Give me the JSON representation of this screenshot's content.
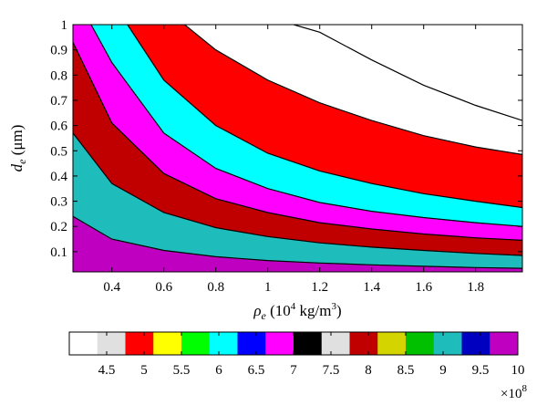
{
  "chart_data": {
    "type": "contour",
    "xlabel": {
      "symbol": "ρ",
      "sub": "e",
      "unit_pre": " (10",
      "unit_sup": "4",
      "unit_mid": " kg/m",
      "unit_sup2": "3",
      "unit_post": ")"
    },
    "ylabel": {
      "symbol": "d",
      "sub": "e",
      "unit": " (μm)"
    },
    "xlim": [
      0.25,
      1.98
    ],
    "ylim": [
      0.02,
      1.0
    ],
    "x_ticks": [
      0.4,
      0.6,
      0.8,
      1.0,
      1.2,
      1.4,
      1.6,
      1.8
    ],
    "x_tick_labels": [
      "0.4",
      "0.6",
      "0.8",
      "1",
      "1.2",
      "1.4",
      "1.6",
      "1.8"
    ],
    "y_ticks": [
      0.1,
      0.2,
      0.3,
      0.4,
      0.5,
      0.6,
      0.7,
      0.8,
      0.9,
      1.0
    ],
    "y_tick_labels": [
      "0.1",
      "0.2",
      "0.3",
      "0.4",
      "0.5",
      "0.6",
      "0.7",
      "0.8",
      "0.9",
      "1"
    ],
    "region_colors": [
      "#c000c0",
      "#1fbcbc",
      "#c00000",
      "#ff00ff",
      "#00ffff",
      "#ff0000",
      "#ffffff"
    ],
    "contour_lines": [
      {
        "points": [
          [
            0.25,
            0.24
          ],
          [
            0.4,
            0.15
          ],
          [
            0.6,
            0.105
          ],
          [
            0.8,
            0.08
          ],
          [
            1.0,
            0.065
          ],
          [
            1.2,
            0.055
          ],
          [
            1.4,
            0.048
          ],
          [
            1.6,
            0.042
          ],
          [
            1.8,
            0.037
          ],
          [
            1.98,
            0.034
          ]
        ]
      },
      {
        "points": [
          [
            0.25,
            0.57
          ],
          [
            0.4,
            0.37
          ],
          [
            0.6,
            0.255
          ],
          [
            0.8,
            0.195
          ],
          [
            1.0,
            0.16
          ],
          [
            1.2,
            0.135
          ],
          [
            1.4,
            0.118
          ],
          [
            1.6,
            0.105
          ],
          [
            1.8,
            0.093
          ],
          [
            1.98,
            0.085
          ]
        ]
      },
      {
        "points": [
          [
            0.25,
            0.93
          ],
          [
            0.4,
            0.61
          ],
          [
            0.6,
            0.41
          ],
          [
            0.8,
            0.31
          ],
          [
            1.0,
            0.255
          ],
          [
            1.2,
            0.215
          ],
          [
            1.4,
            0.19
          ],
          [
            1.6,
            0.17
          ],
          [
            1.8,
            0.155
          ],
          [
            1.98,
            0.145
          ]
        ]
      },
      {
        "points": [
          [
            0.32,
            1.0
          ],
          [
            0.4,
            0.85
          ],
          [
            0.6,
            0.57
          ],
          [
            0.8,
            0.43
          ],
          [
            1.0,
            0.35
          ],
          [
            1.2,
            0.295
          ],
          [
            1.4,
            0.26
          ],
          [
            1.6,
            0.235
          ],
          [
            1.8,
            0.215
          ],
          [
            1.98,
            0.2
          ]
        ]
      },
      {
        "points": [
          [
            0.46,
            1.0
          ],
          [
            0.6,
            0.78
          ],
          [
            0.8,
            0.6
          ],
          [
            1.0,
            0.49
          ],
          [
            1.2,
            0.42
          ],
          [
            1.4,
            0.37
          ],
          [
            1.6,
            0.33
          ],
          [
            1.8,
            0.3
          ],
          [
            1.98,
            0.275
          ]
        ]
      },
      {
        "points": [
          [
            0.68,
            1.0
          ],
          [
            0.8,
            0.9
          ],
          [
            1.0,
            0.78
          ],
          [
            1.2,
            0.69
          ],
          [
            1.4,
            0.62
          ],
          [
            1.6,
            0.56
          ],
          [
            1.8,
            0.515
          ],
          [
            1.98,
            0.485
          ]
        ]
      },
      {
        "points": [
          [
            1.1,
            1.0
          ],
          [
            1.2,
            0.97
          ],
          [
            1.4,
            0.86
          ],
          [
            1.6,
            0.76
          ],
          [
            1.8,
            0.68
          ],
          [
            1.98,
            0.62
          ]
        ]
      }
    ],
    "colorbar": {
      "colors": [
        "#ffffff",
        "#e0e0e0",
        "#ff0000",
        "#ffff00",
        "#00ff00",
        "#00ffff",
        "#0000ff",
        "#ff00ff",
        "#000000",
        "#e0e0e0",
        "#c00000",
        "#d4d400",
        "#00c000",
        "#1fbcbc",
        "#0000c0",
        "#c000c0"
      ],
      "tick_labels": [
        "4.5",
        "5",
        "5.5",
        "6",
        "6.5",
        "7",
        "7.5",
        "8",
        "8.5",
        "9",
        "9.5",
        "10"
      ],
      "tick_values": [
        4.5,
        5,
        5.5,
        6,
        6.5,
        7,
        7.5,
        8,
        8.5,
        9,
        9.5,
        10
      ],
      "range": [
        4.0,
        10.0
      ],
      "multiplier": {
        "base": "×10",
        "exp": "8"
      }
    }
  }
}
